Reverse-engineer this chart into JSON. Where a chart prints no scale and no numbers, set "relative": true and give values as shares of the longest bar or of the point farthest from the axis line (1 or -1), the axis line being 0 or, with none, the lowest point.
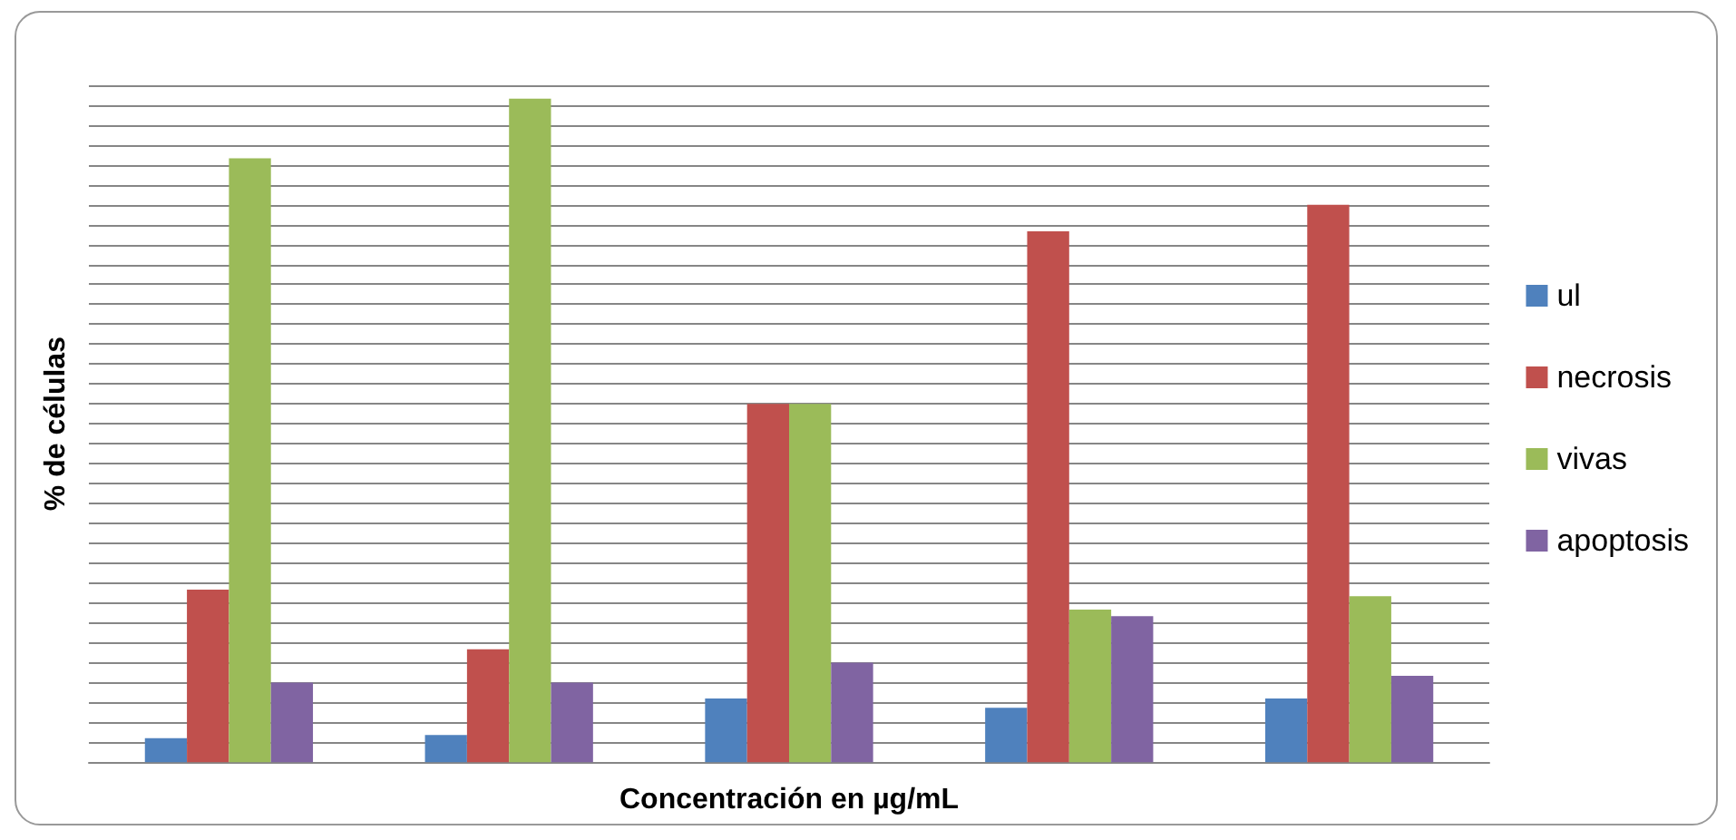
{
  "chart_data": {
    "type": "bar",
    "relative": true,
    "xlabel": "Concentración en µg/mL",
    "ylabel": "% de células",
    "categories": [
      null,
      null,
      null,
      null,
      null
    ],
    "series": [
      {
        "name": "ul",
        "color": "#4f81bd",
        "values": [
          0.036,
          0.041,
          0.096,
          0.082,
          0.096
        ]
      },
      {
        "name": "necrosis",
        "color": "#c0504d",
        "values": [
          0.26,
          0.17,
          0.54,
          0.8,
          0.84
        ]
      },
      {
        "name": "vivas",
        "color": "#9bbb59",
        "values": [
          0.91,
          1,
          0.54,
          0.23,
          0.25
        ]
      },
      {
        "name": "apoptosis",
        "color": "#8064a2",
        "values": [
          0.12,
          0.12,
          0.15,
          0.22,
          0.13
        ]
      }
    ],
    "grid": "y",
    "legend": "right"
  }
}
